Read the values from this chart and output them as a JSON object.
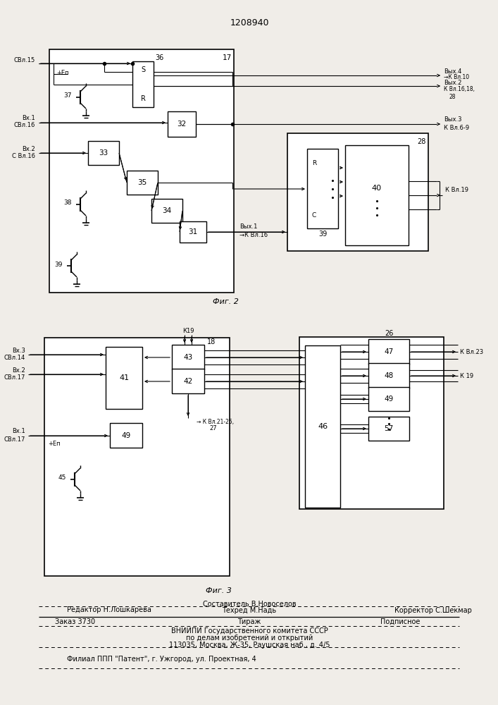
{
  "title": "1208940",
  "fig2_label": "Фиг. 2",
  "fig3_label": "Фиг. 3",
  "bg_color": "#f0ede8",
  "footer": {
    "editor": "Редактор Н.Лошкарева",
    "composer": "Составитель В.Новоселов",
    "techred": "Техред М.Надь",
    "corrector": "Корректор С.Шекмар",
    "order": "Заказ 3730",
    "tiraj": "Тираж",
    "podp": "Подписное",
    "vniip1": "ВНИИПИ Государственного комитета СССР",
    "vniip2": "по делам изобретений и открытий",
    "vniip3": "113035, Москва, Ж-35, Раушская наб., д. 4/5",
    "filial": "Филиал ППП \"Патент\", г. Ужгород, ул. Проектная, 4"
  }
}
